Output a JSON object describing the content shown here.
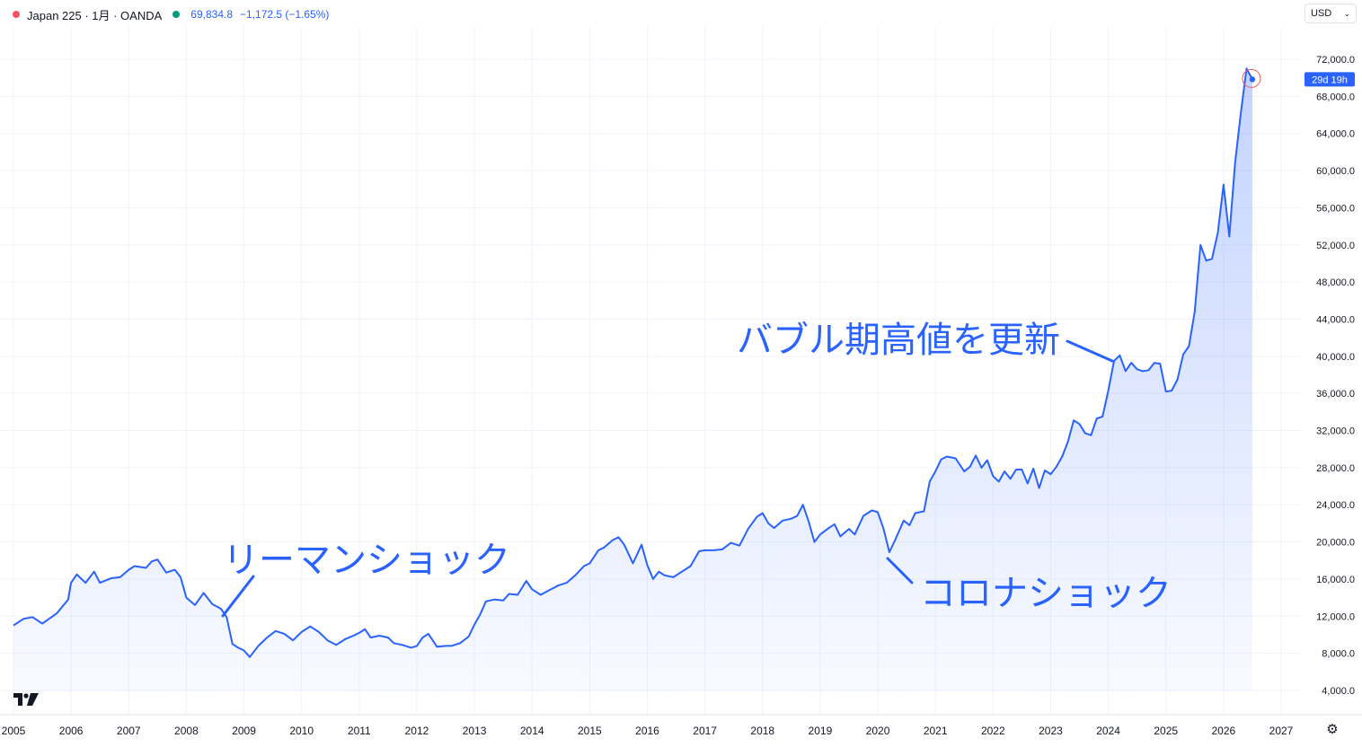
{
  "header": {
    "symbol": "Japan 225 · 1月 · OANDA",
    "price": "69,834.8",
    "change": "−1,172.5 (−1.65%)",
    "status_dot_color": "#f7525f",
    "market_dot_color": "#089981"
  },
  "currency_selector": {
    "label": "USD",
    "icon": "chevron-down-icon"
  },
  "price_tag": {
    "countdown": "29d 19h"
  },
  "annotations": {
    "lehman": "リーマンショック",
    "bubble": "バブル期高値を更新",
    "corona": "コロナショック"
  },
  "chart_data": {
    "type": "area",
    "series": [
      {
        "values": [
          [
            2005.0,
            11000
          ],
          [
            2005.17,
            11700
          ],
          [
            2005.33,
            11900
          ],
          [
            2005.5,
            11200
          ],
          [
            2005.75,
            12300
          ],
          [
            2005.95,
            13800
          ],
          [
            2006.0,
            15600
          ],
          [
            2006.1,
            16500
          ],
          [
            2006.25,
            15600
          ],
          [
            2006.4,
            16800
          ],
          [
            2006.5,
            15600
          ],
          [
            2006.7,
            16100
          ],
          [
            2006.85,
            16200
          ],
          [
            2007.0,
            17000
          ],
          [
            2007.1,
            17400
          ],
          [
            2007.3,
            17200
          ],
          [
            2007.4,
            17900
          ],
          [
            2007.5,
            18100
          ],
          [
            2007.65,
            16700
          ],
          [
            2007.8,
            17000
          ],
          [
            2007.9,
            16200
          ],
          [
            2008.0,
            14000
          ],
          [
            2008.15,
            13200
          ],
          [
            2008.3,
            14500
          ],
          [
            2008.45,
            13300
          ],
          [
            2008.6,
            12800
          ],
          [
            2008.7,
            11900
          ],
          [
            2008.8,
            9000
          ],
          [
            2008.9,
            8600
          ],
          [
            2009.0,
            8300
          ],
          [
            2009.1,
            7600
          ],
          [
            2009.25,
            8800
          ],
          [
            2009.4,
            9700
          ],
          [
            2009.55,
            10400
          ],
          [
            2009.7,
            10100
          ],
          [
            2009.85,
            9400
          ],
          [
            2010.0,
            10300
          ],
          [
            2010.15,
            10900
          ],
          [
            2010.3,
            10300
          ],
          [
            2010.45,
            9400
          ],
          [
            2010.6,
            8900
          ],
          [
            2010.75,
            9500
          ],
          [
            2010.9,
            9900
          ],
          [
            2011.0,
            10200
          ],
          [
            2011.1,
            10600
          ],
          [
            2011.2,
            9700
          ],
          [
            2011.35,
            9900
          ],
          [
            2011.5,
            9700
          ],
          [
            2011.6,
            9100
          ],
          [
            2011.75,
            8900
          ],
          [
            2011.9,
            8600
          ],
          [
            2012.0,
            8800
          ],
          [
            2012.1,
            9700
          ],
          [
            2012.2,
            10100
          ],
          [
            2012.35,
            8700
          ],
          [
            2012.5,
            8800
          ],
          [
            2012.6,
            8800
          ],
          [
            2012.75,
            9100
          ],
          [
            2012.9,
            9800
          ],
          [
            2013.0,
            11100
          ],
          [
            2013.1,
            12200
          ],
          [
            2013.2,
            13600
          ],
          [
            2013.35,
            13800
          ],
          [
            2013.5,
            13700
          ],
          [
            2013.6,
            14400
          ],
          [
            2013.75,
            14300
          ],
          [
            2013.9,
            15800
          ],
          [
            2014.0,
            14900
          ],
          [
            2014.15,
            14300
          ],
          [
            2014.3,
            14800
          ],
          [
            2014.45,
            15300
          ],
          [
            2014.6,
            15600
          ],
          [
            2014.75,
            16400
          ],
          [
            2014.9,
            17400
          ],
          [
            2015.0,
            17700
          ],
          [
            2015.15,
            19100
          ],
          [
            2015.25,
            19400
          ],
          [
            2015.4,
            20200
          ],
          [
            2015.5,
            20500
          ],
          [
            2015.6,
            19700
          ],
          [
            2015.75,
            17700
          ],
          [
            2015.9,
            19700
          ],
          [
            2016.0,
            17500
          ],
          [
            2016.1,
            16000
          ],
          [
            2016.2,
            16800
          ],
          [
            2016.3,
            16400
          ],
          [
            2016.45,
            16200
          ],
          [
            2016.6,
            16800
          ],
          [
            2016.75,
            17400
          ],
          [
            2016.9,
            19000
          ],
          [
            2017.0,
            19100
          ],
          [
            2017.15,
            19100
          ],
          [
            2017.3,
            19200
          ],
          [
            2017.45,
            19900
          ],
          [
            2017.6,
            19600
          ],
          [
            2017.75,
            21400
          ],
          [
            2017.9,
            22700
          ],
          [
            2018.0,
            23100
          ],
          [
            2018.1,
            22000
          ],
          [
            2018.2,
            21500
          ],
          [
            2018.35,
            22300
          ],
          [
            2018.5,
            22500
          ],
          [
            2018.6,
            22800
          ],
          [
            2018.7,
            24000
          ],
          [
            2018.8,
            22200
          ],
          [
            2018.9,
            20000
          ],
          [
            2019.0,
            20800
          ],
          [
            2019.15,
            21500
          ],
          [
            2019.25,
            21900
          ],
          [
            2019.35,
            20600
          ],
          [
            2019.5,
            21400
          ],
          [
            2019.6,
            20800
          ],
          [
            2019.75,
            22800
          ],
          [
            2019.9,
            23400
          ],
          [
            2020.0,
            23200
          ],
          [
            2020.1,
            21400
          ],
          [
            2020.2,
            18900
          ],
          [
            2020.3,
            20200
          ],
          [
            2020.45,
            22300
          ],
          [
            2020.55,
            21800
          ],
          [
            2020.65,
            23100
          ],
          [
            2020.8,
            23300
          ],
          [
            2020.9,
            26500
          ],
          [
            2021.0,
            27600
          ],
          [
            2021.1,
            28900
          ],
          [
            2021.2,
            29200
          ],
          [
            2021.35,
            29000
          ],
          [
            2021.5,
            27600
          ],
          [
            2021.6,
            28100
          ],
          [
            2021.7,
            29300
          ],
          [
            2021.8,
            28000
          ],
          [
            2021.9,
            28800
          ],
          [
            2022.0,
            27100
          ],
          [
            2022.1,
            26500
          ],
          [
            2022.2,
            27600
          ],
          [
            2022.3,
            26800
          ],
          [
            2022.4,
            27800
          ],
          [
            2022.5,
            27800
          ],
          [
            2022.6,
            26300
          ],
          [
            2022.7,
            27900
          ],
          [
            2022.8,
            25800
          ],
          [
            2022.9,
            27700
          ],
          [
            2023.0,
            27300
          ],
          [
            2023.1,
            28100
          ],
          [
            2023.2,
            29200
          ],
          [
            2023.3,
            30800
          ],
          [
            2023.4,
            33100
          ],
          [
            2023.5,
            32700
          ],
          [
            2023.6,
            31700
          ],
          [
            2023.7,
            31500
          ],
          [
            2023.8,
            33300
          ],
          [
            2023.9,
            33500
          ],
          [
            2024.0,
            36300
          ],
          [
            2024.1,
            39500
          ],
          [
            2024.2,
            40100
          ],
          [
            2024.3,
            38400
          ],
          [
            2024.4,
            39300
          ],
          [
            2024.5,
            38600
          ],
          [
            2024.6,
            38400
          ],
          [
            2024.7,
            38500
          ],
          [
            2024.8,
            39300
          ],
          [
            2024.9,
            39200
          ],
          [
            2025.0,
            36200
          ],
          [
            2025.1,
            36300
          ],
          [
            2025.2,
            37500
          ],
          [
            2025.3,
            40200
          ],
          [
            2025.4,
            41100
          ],
          [
            2025.5,
            44800
          ],
          [
            2025.6,
            52000
          ],
          [
            2025.7,
            50300
          ],
          [
            2025.8,
            50500
          ],
          [
            2025.9,
            53300
          ],
          [
            2026.0,
            58500
          ],
          [
            2026.1,
            52900
          ],
          [
            2026.2,
            60800
          ],
          [
            2026.3,
            66200
          ],
          [
            2026.4,
            71000
          ],
          [
            2026.5,
            69834.8
          ]
        ]
      }
    ],
    "x_ticks": [
      "2005",
      "2006",
      "2007",
      "2008",
      "2009",
      "2010",
      "2011",
      "2012",
      "2013",
      "2014",
      "2015",
      "2016",
      "2017",
      "2018",
      "2019",
      "2020",
      "2021",
      "2022",
      "2023",
      "2024",
      "2025",
      "2026",
      "2027"
    ],
    "y_ticks": [
      "4,000.0",
      "8,000.0",
      "12,000.0",
      "16,000.0",
      "20,000.0",
      "24,000.0",
      "28,000.0",
      "32,000.0",
      "36,000.0",
      "40,000.0",
      "44,000.0",
      "48,000.0",
      "52,000.0",
      "56,000.0",
      "60,000.0",
      "64,000.0",
      "68,000.0",
      "72,000.0"
    ],
    "xlim": [
      2005.0,
      2027.0
    ],
    "ylim": [
      2000,
      76000
    ],
    "grid": true,
    "line_color": "#2962ff",
    "area_fill_color": "#2962ff"
  }
}
